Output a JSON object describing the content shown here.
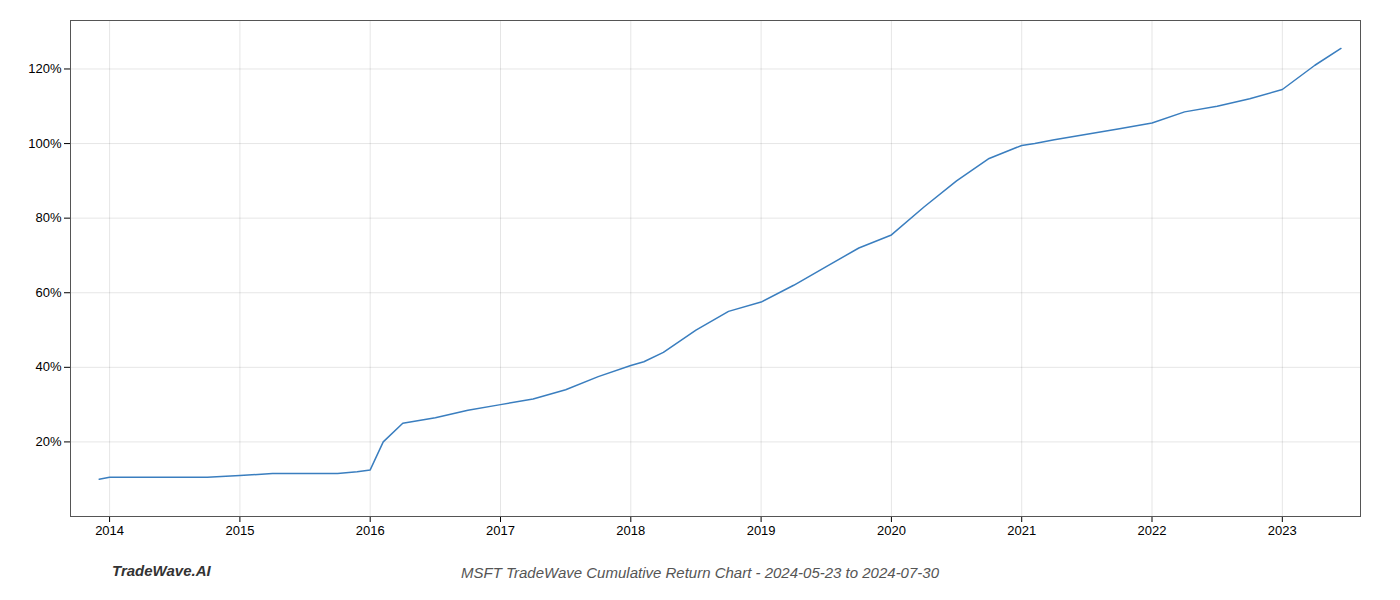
{
  "chart_data": {
    "type": "line",
    "title": "MSFT TradeWave Cumulative Return Chart - 2024-05-23 to 2024-07-30",
    "annotations": [
      "TradeWave.AI"
    ],
    "x": [
      2013.92,
      2014.0,
      2014.25,
      2014.5,
      2014.75,
      2015.0,
      2015.25,
      2015.5,
      2015.75,
      2015.9,
      2016.0,
      2016.1,
      2016.25,
      2016.5,
      2016.75,
      2017.0,
      2017.25,
      2017.5,
      2017.75,
      2018.0,
      2018.1,
      2018.25,
      2018.5,
      2018.75,
      2019.0,
      2019.25,
      2019.5,
      2019.75,
      2020.0,
      2020.25,
      2020.5,
      2020.75,
      2021.0,
      2021.1,
      2021.25,
      2021.5,
      2021.75,
      2022.0,
      2022.25,
      2022.5,
      2022.75,
      2023.0,
      2023.25,
      2023.45
    ],
    "values": [
      10.0,
      10.5,
      10.5,
      10.5,
      10.5,
      11.0,
      11.5,
      11.5,
      11.5,
      12.0,
      12.5,
      20.0,
      25.0,
      26.5,
      28.5,
      30.0,
      31.5,
      34.0,
      37.5,
      40.5,
      41.5,
      44.0,
      50.0,
      55.0,
      57.5,
      62.0,
      67.0,
      72.0,
      75.5,
      83.0,
      90.0,
      96.0,
      99.5,
      100.0,
      101.0,
      102.5,
      104.0,
      105.5,
      108.5,
      110.0,
      112.0,
      114.5,
      121.0,
      125.5
    ],
    "color": "#3a7ebf",
    "xlim": [
      2013.7,
      2023.6
    ],
    "ylim": [
      0,
      133
    ],
    "xticks": [
      2014,
      2015,
      2016,
      2017,
      2018,
      2019,
      2020,
      2021,
      2022,
      2023
    ],
    "yticks": [
      {
        "value": 20,
        "label": "20%"
      },
      {
        "value": 40,
        "label": "40%"
      },
      {
        "value": 60,
        "label": "60%"
      },
      {
        "value": 80,
        "label": "80%"
      },
      {
        "value": 100,
        "label": "100%"
      },
      {
        "value": 120,
        "label": "120%"
      }
    ],
    "grid": true
  }
}
